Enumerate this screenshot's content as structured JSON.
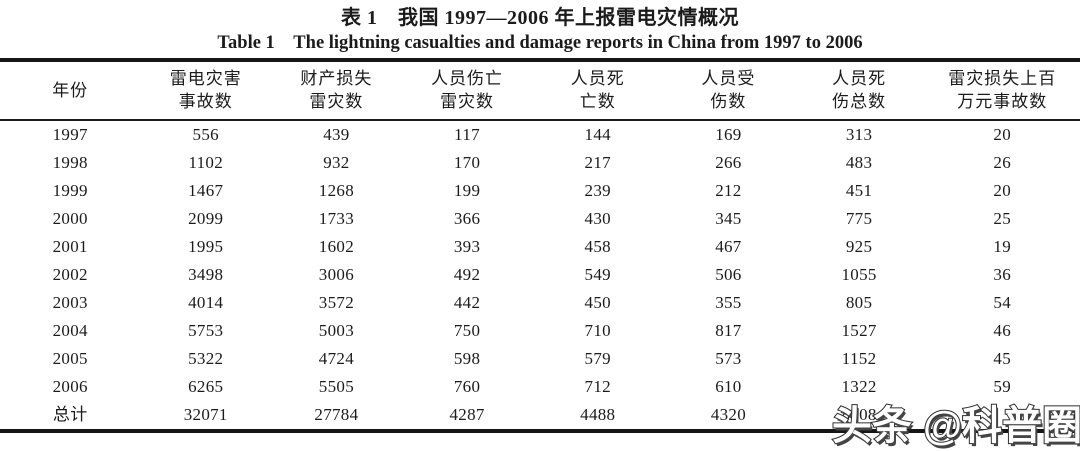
{
  "titles": {
    "zh": "表 1　我国 1997—2006 年上报雷电灾情概况",
    "en": "Table 1　The lightning casualties and damage reports in China from 1997 to 2006"
  },
  "table": {
    "columns": [
      {
        "line1": "年份",
        "line2": ""
      },
      {
        "line1": "雷电灾害",
        "line2": "事故数"
      },
      {
        "line1": "财产损失",
        "line2": "雷灾数"
      },
      {
        "line1": "人员伤亡",
        "line2": "雷灾数"
      },
      {
        "line1": "人员死",
        "line2": "亡数"
      },
      {
        "line1": "人员受",
        "line2": "伤数"
      },
      {
        "line1": "人员死",
        "line2": "伤总数"
      },
      {
        "line1": "雷灾损失上百",
        "line2": "万元事故数"
      }
    ],
    "rows": [
      [
        "1997",
        "556",
        "439",
        "117",
        "144",
        "169",
        "313",
        "20"
      ],
      [
        "1998",
        "1102",
        "932",
        "170",
        "217",
        "266",
        "483",
        "26"
      ],
      [
        "1999",
        "1467",
        "1268",
        "199",
        "239",
        "212",
        "451",
        "20"
      ],
      [
        "2000",
        "2099",
        "1733",
        "366",
        "430",
        "345",
        "775",
        "25"
      ],
      [
        "2001",
        "1995",
        "1602",
        "393",
        "458",
        "467",
        "925",
        "19"
      ],
      [
        "2002",
        "3498",
        "3006",
        "492",
        "549",
        "506",
        "1055",
        "36"
      ],
      [
        "2003",
        "4014",
        "3572",
        "442",
        "450",
        "355",
        "805",
        "54"
      ],
      [
        "2004",
        "5753",
        "5003",
        "750",
        "710",
        "817",
        "1527",
        "46"
      ],
      [
        "2005",
        "5322",
        "4724",
        "598",
        "579",
        "573",
        "1152",
        "45"
      ],
      [
        "2006",
        "6265",
        "5505",
        "760",
        "712",
        "610",
        "1322",
        "59"
      ],
      [
        "总计",
        "32071",
        "27784",
        "4287",
        "4488",
        "4320",
        "8808",
        ""
      ]
    ]
  },
  "watermark": {
    "text": "头条 @科普圈"
  }
}
